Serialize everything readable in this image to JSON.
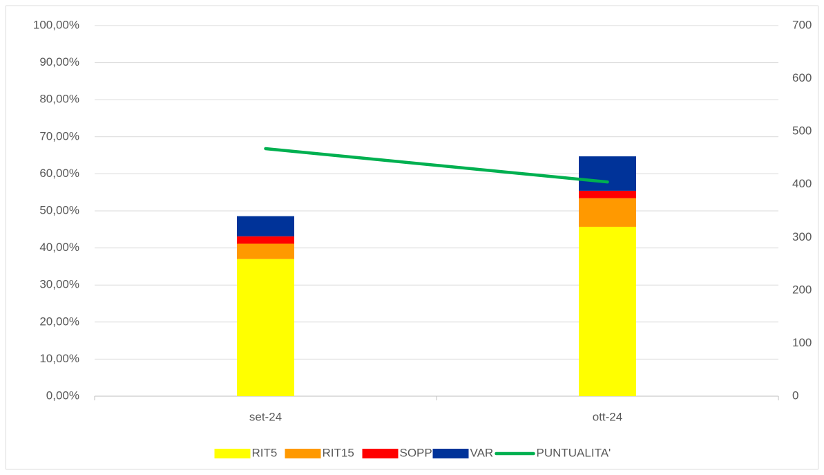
{
  "chart_data": {
    "type": "bar",
    "categories": [
      "set-24",
      "ott-24"
    ],
    "series": [
      {
        "name": "RIT5",
        "color": "#ffff00",
        "values": [
          259,
          320
        ],
        "axis": "y2",
        "stack": true
      },
      {
        "name": "RIT15",
        "color": "#ff9900",
        "values": [
          29,
          54
        ],
        "axis": "y2",
        "stack": true
      },
      {
        "name": "SOPP",
        "color": "#ff0000",
        "values": [
          14,
          14
        ],
        "axis": "y2",
        "stack": true
      },
      {
        "name": "VAR",
        "color": "#003399",
        "values": [
          38,
          65
        ],
        "axis": "y2",
        "stack": true
      },
      {
        "name": "PUNTUALITA'",
        "color": "#00b050",
        "values": [
          66.8,
          57.8
        ],
        "type": "line"
      }
    ],
    "ylim": [
      0,
      100
    ],
    "yticks": [
      {
        "value": 0,
        "label": "0,00%"
      },
      {
        "value": 10,
        "label": "10,00%"
      },
      {
        "value": 20,
        "label": "20,00%"
      },
      {
        "value": 30,
        "label": "30,00%"
      },
      {
        "value": 40,
        "label": "40,00%"
      },
      {
        "value": 50,
        "label": "50,00%"
      },
      {
        "value": 60,
        "label": "60,00%"
      },
      {
        "value": 70,
        "label": "70,00%"
      },
      {
        "value": 80,
        "label": "80,00%"
      },
      {
        "value": 90,
        "label": "90,00%"
      },
      {
        "value": 100,
        "label": "100,00%"
      }
    ],
    "y2lim": [
      0,
      700
    ],
    "y2ticks": [
      0,
      100,
      200,
      300,
      400,
      500,
      600,
      700
    ],
    "grid": true,
    "legend": "bottom"
  }
}
